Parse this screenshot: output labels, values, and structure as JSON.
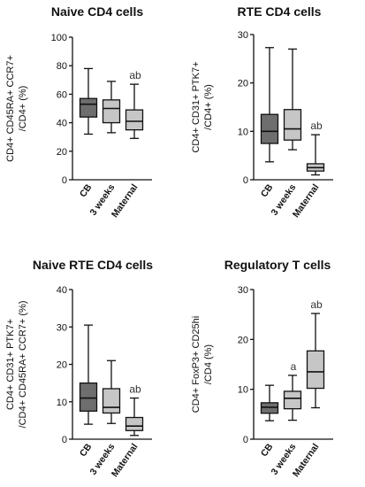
{
  "colors": {
    "cb": "#6e6e6e",
    "three_weeks": "#c6c6c6",
    "maternal": "#c6c6c6",
    "line": "#111111"
  },
  "chart_data": [
    {
      "type": "boxplot",
      "title": "Naive CD4 cells",
      "ylabel_line1": "CD4+ CD45RA+ CCR7+",
      "ylabel_line2": "/CD4+ (%)",
      "ylim": [
        0,
        100
      ],
      "yticks": [
        "0",
        "20",
        "40",
        "60",
        "80",
        "100"
      ],
      "categories": [
        "CB",
        "3 weeks",
        "Maternal"
      ],
      "boxes": [
        {
          "min": 32,
          "q1": 44,
          "median": 53,
          "q3": 57,
          "max": 78,
          "annotation": ""
        },
        {
          "min": 33,
          "q1": 40,
          "median": 50,
          "q3": 56,
          "max": 69,
          "annotation": ""
        },
        {
          "min": 29,
          "q1": 35,
          "median": 41,
          "q3": 49,
          "max": 67,
          "annotation": "ab"
        }
      ]
    },
    {
      "type": "boxplot",
      "title": "RTE CD4 cells",
      "ylabel_line1": "CD4+ CD31+ PTK7+",
      "ylabel_line2": "/CD4+ (%)",
      "ylim": [
        0,
        30
      ],
      "yticks": [
        "0",
        "10",
        "20",
        "30"
      ],
      "categories": [
        "CB",
        "3 weeks",
        "Maternal"
      ],
      "boxes": [
        {
          "min": 3.7,
          "q1": 7.5,
          "median": 10,
          "q3": 13.5,
          "max": 27.3,
          "annotation": ""
        },
        {
          "min": 6.2,
          "q1": 8.2,
          "median": 10.5,
          "q3": 14.5,
          "max": 27,
          "annotation": ""
        },
        {
          "min": 1,
          "q1": 1.8,
          "median": 2.5,
          "q3": 3.3,
          "max": 9.3,
          "annotation": "ab"
        }
      ]
    },
    {
      "type": "boxplot",
      "title": "Naive RTE CD4 cells",
      "ylabel_line1": "CD4+ CD31+ PTK7+",
      "ylabel_line2": "/CD4+ CD45RA+ CCR7+ (%)",
      "ylim": [
        0,
        40
      ],
      "yticks": [
        "0",
        "10",
        "20",
        "30",
        "40"
      ],
      "categories": [
        "CB",
        "3 weeks",
        "Maternal"
      ],
      "boxes": [
        {
          "min": 4,
          "q1": 7.5,
          "median": 11,
          "q3": 15,
          "max": 30.5,
          "annotation": ""
        },
        {
          "min": 4.2,
          "q1": 7,
          "median": 8.5,
          "q3": 13.5,
          "max": 21,
          "annotation": ""
        },
        {
          "min": 1,
          "q1": 2.3,
          "median": 3.5,
          "q3": 5.8,
          "max": 11,
          "annotation": "ab"
        }
      ]
    },
    {
      "type": "boxplot",
      "title": "Regulatory T cells",
      "ylabel_line1": "CD4+ FoxP3+ CD25hi",
      "ylabel_line2": "/CD4 (%)",
      "ylim": [
        0,
        30
      ],
      "yticks": [
        "0",
        "10",
        "20",
        "30"
      ],
      "categories": [
        "CB",
        "3 weeks",
        "Maternal"
      ],
      "boxes": [
        {
          "min": 3.7,
          "q1": 5.2,
          "median": 6.4,
          "q3": 7.3,
          "max": 10.8,
          "annotation": ""
        },
        {
          "min": 3.8,
          "q1": 6.1,
          "median": 8.2,
          "q3": 9.6,
          "max": 12.8,
          "annotation": "a"
        },
        {
          "min": 6.3,
          "q1": 10.2,
          "median": 13.5,
          "q3": 17.7,
          "max": 25.2,
          "annotation": "ab"
        }
      ]
    }
  ]
}
